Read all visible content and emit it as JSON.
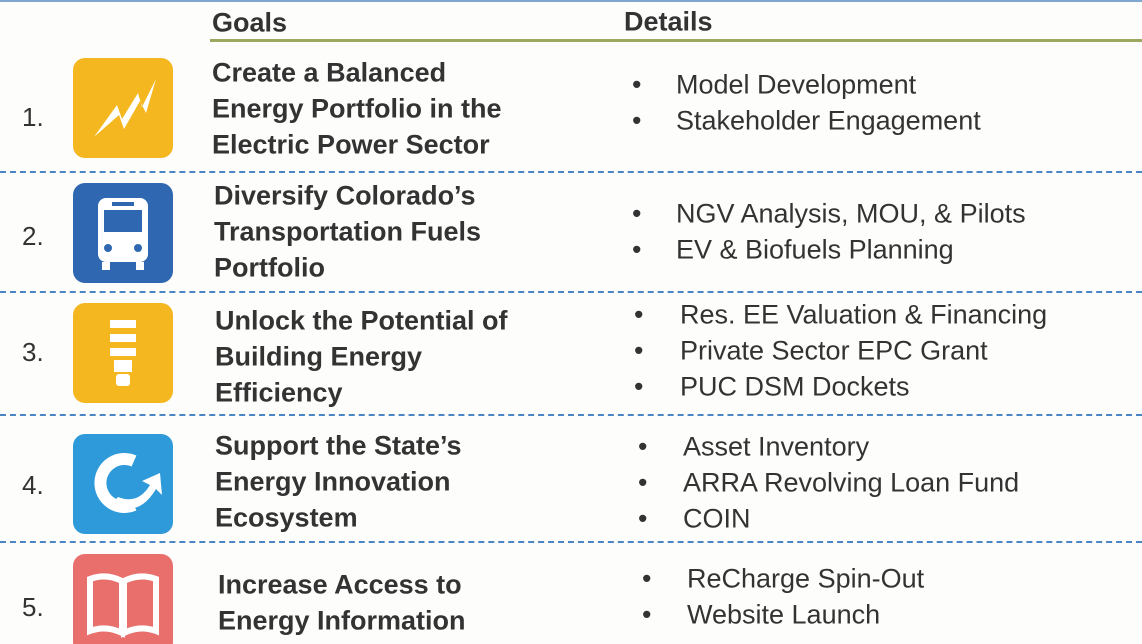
{
  "header": {
    "goals": "Goals",
    "details": "Details"
  },
  "rows": [
    {
      "number": "1.",
      "goal": [
        "Create a Balanced",
        "Energy Portfolio in the",
        "Electric Power Sector"
      ],
      "details": [
        "Model Development",
        "Stakeholder Engagement"
      ]
    },
    {
      "number": "2.",
      "goal": [
        "Diversify Colorado’s",
        "Transportation Fuels",
        "Portfolio"
      ],
      "details": [
        "NGV Analysis, MOU, & Pilots",
        "EV & Biofuels Planning"
      ]
    },
    {
      "number": "3.",
      "goal": [
        "Unlock the Potential of",
        "Building Energy",
        "Efficiency"
      ],
      "details": [
        "Res. EE Valuation & Financing",
        "Private Sector EPC Grant",
        "PUC DSM Dockets"
      ]
    },
    {
      "number": "4.",
      "goal": [
        "Support the State’s",
        "Energy Innovation",
        "Ecosystem"
      ],
      "details": [
        "Asset Inventory",
        "ARRA Revolving Loan Fund",
        "COIN"
      ]
    },
    {
      "number": "5.",
      "goal": [
        "Increase Access to",
        "Energy Information"
      ],
      "details": [
        "ReCharge Spin-Out",
        "Website Launch"
      ]
    }
  ]
}
